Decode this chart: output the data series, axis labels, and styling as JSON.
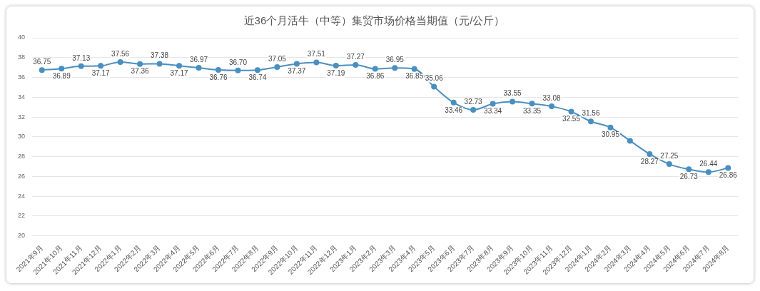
{
  "chart_data": {
    "type": "line",
    "title": "近36个月活牛（中等）集贸市场价格当期值（元/公斤）",
    "categories": [
      "2021年9月",
      "2021年10月",
      "2021年11月",
      "2021年12月",
      "2022年1月",
      "2022年2月",
      "2022年3月",
      "2022年4月",
      "2022年5月",
      "2022年6月",
      "2022年7月",
      "2022年8月",
      "2022年9月",
      "2022年10月",
      "2022年11月",
      "2022年12月",
      "2023年1月",
      "2023年2月",
      "2023年3月",
      "2023年4月",
      "2023年5月",
      "2023年6月",
      "2023年7月",
      "2023年8月",
      "2023年9月",
      "2023年10月",
      "2023年11月",
      "2023年12月",
      "2024年1月",
      "2024年2月",
      "2024年3月",
      "2024年4月",
      "2024年5月",
      "2024年6月",
      "2024年7月",
      "2024年8月"
    ],
    "values": [
      36.75,
      36.89,
      37.13,
      37.17,
      37.56,
      37.36,
      37.38,
      37.17,
      36.97,
      36.76,
      36.7,
      36.74,
      37.05,
      37.37,
      37.51,
      37.19,
      37.27,
      36.86,
      36.95,
      36.85,
      35.06,
      33.46,
      32.73,
      33.34,
      33.55,
      33.35,
      33.08,
      32.55,
      31.56,
      30.95,
      29.6,
      28.27,
      27.25,
      26.73,
      26.44,
      26.86
    ],
    "value_labels": [
      "36.75",
      "36.89",
      "37.13",
      "37.17",
      "37.56",
      "37.36",
      "37.38",
      "37.17",
      "36.97",
      "36.76",
      "36.70",
      "36.74",
      "37.05",
      "37.37",
      "37.51",
      "37.19",
      "37.27",
      "36.86",
      "36.95",
      "36.85",
      "35.06",
      "33.46",
      "32.73",
      "33.34",
      "33.55",
      "33.35",
      "33.08",
      "32.55",
      "31.56",
      "30.95",
      null,
      "28.27",
      "27.25",
      "26.73",
      "26.44",
      "26.86"
    ],
    "color": "#4a8fc0",
    "marker": "circle",
    "line_style": "solid",
    "grid": "y",
    "ylim": [
      20,
      40
    ],
    "yticks": [
      20,
      22,
      24,
      26,
      28,
      30,
      32,
      34,
      36,
      38,
      40
    ]
  }
}
